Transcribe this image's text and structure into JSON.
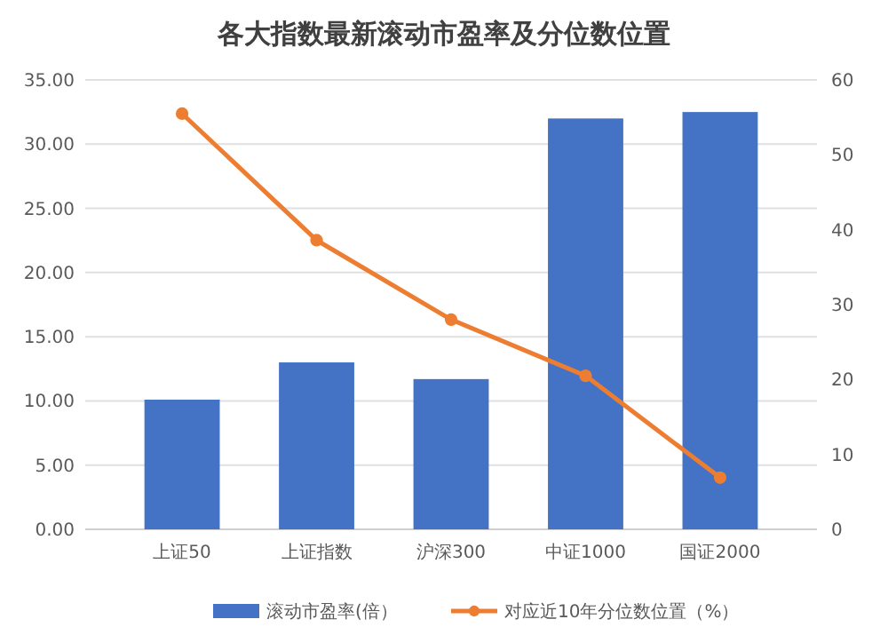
{
  "chart_data": {
    "type": "bar",
    "title": "各大指数最新滚动市盈率及分位数位置",
    "categories": [
      "上证50",
      "上证指数",
      "沪深300",
      "中证1000",
      "国证2000"
    ],
    "series": [
      {
        "name": "滚动市盈率(倍）",
        "color": "#4472c4",
        "values": [
          10.1,
          13.0,
          11.7,
          32.0,
          32.5
        ]
      },
      {
        "name": "对应近10年分位数位置（%）",
        "type": "line",
        "axis": "y2",
        "color": "#ed7d31",
        "values": [
          55.5,
          38.6,
          28,
          20.5,
          6.9
        ]
      }
    ],
    "ylim": [
      0,
      35
    ],
    "yticks": [
      {
        "value": 0,
        "label": "0.00"
      },
      {
        "value": 5,
        "label": "5.00"
      },
      {
        "value": 10,
        "label": "10.00"
      },
      {
        "value": 15,
        "label": "15.00"
      },
      {
        "value": 20,
        "label": "20.00"
      },
      {
        "value": 25,
        "label": "25.00"
      },
      {
        "value": 30,
        "label": "30.00"
      },
      {
        "value": 35,
        "label": "35.00"
      }
    ],
    "y2lim": [
      0,
      60
    ],
    "y2ticks": [
      0,
      10,
      20,
      30,
      40,
      50,
      60
    ],
    "grid": "y",
    "legend": "bottom",
    "marker": "circle"
  }
}
